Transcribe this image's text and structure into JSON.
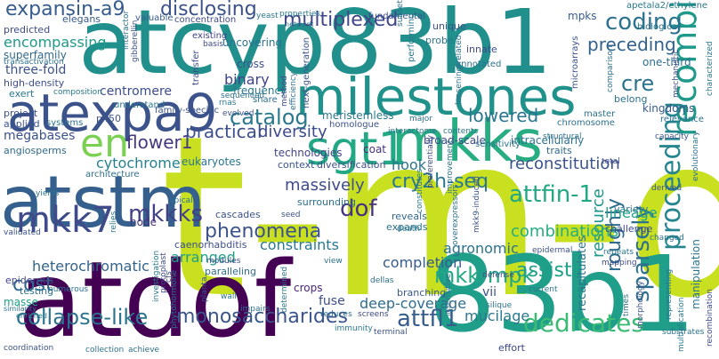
{
  "words": [
    {
      "text": "t-m-d",
      "color": "#c8e020"
    },
    {
      "text": "atcyp83b1",
      "color": "#21908d"
    },
    {
      "text": "atdof",
      "color": "#440154"
    },
    {
      "text": "83b1",
      "color": "#1f9e89"
    },
    {
      "text": "atstm",
      "color": "#35608d"
    },
    {
      "text": "atexpa9",
      "color": "#3b528b"
    },
    {
      "text": "milestones",
      "color": "#21918c"
    },
    {
      "text": "mkks",
      "color": "#27ad81"
    },
    {
      "text": "sgt1",
      "color": "#22a884"
    },
    {
      "text": "mkk7",
      "color": "#3e4a89"
    },
    {
      "text": "en",
      "color": "#7ad151"
    },
    {
      "text": "expansin-a9",
      "color": "#365c8d"
    },
    {
      "text": "disclosing",
      "color": "#3b528b"
    },
    {
      "text": "multiplexed",
      "color": "#404688"
    },
    {
      "text": "coding",
      "color": "#2c728e"
    },
    {
      "text": "preceding",
      "color": "#33638d"
    },
    {
      "text": "cre",
      "color": "#2c718e"
    },
    {
      "text": "recombinase",
      "color": "#1f9a8a"
    },
    {
      "text": "catalog",
      "color": "#2a788e"
    },
    {
      "text": "proceeding",
      "color": "#25858e"
    },
    {
      "text": "cry2h-seq",
      "color": "#2a788e"
    },
    {
      "text": "attfin-1",
      "color": "#22a884"
    },
    {
      "text": "mkkks",
      "color": "#424086"
    },
    {
      "text": "dof",
      "color": "#46327e"
    },
    {
      "text": "mkk-mpk",
      "color": "#22a884"
    },
    {
      "text": "phenomena",
      "color": "#3b528b"
    },
    {
      "text": "combinations",
      "color": "#26ad81"
    },
    {
      "text": "assist",
      "color": "#1fa187"
    },
    {
      "text": "resource",
      "color": "#1f968b"
    },
    {
      "text": "sparsely",
      "color": "#2d708e"
    },
    {
      "text": "roughly",
      "color": "#2f6c8e"
    },
    {
      "text": "dedicates",
      "color": "#3bbb75"
    },
    {
      "text": "monosaccharides",
      "color": "#3a548c"
    },
    {
      "text": "collapse-like",
      "color": "#2c738e"
    },
    {
      "text": "attfl1",
      "color": "#365d8d"
    },
    {
      "text": "cost",
      "color": "#31688e"
    },
    {
      "text": "lowered",
      "color": "#2a768e"
    },
    {
      "text": "flower1",
      "color": "#453781"
    },
    {
      "text": "practical",
      "color": "#3c4f8a"
    },
    {
      "text": "diversity",
      "color": "#3e4989"
    },
    {
      "text": "massively",
      "color": "#3e4c8a"
    },
    {
      "text": "reconstitution",
      "color": "#3b528b"
    },
    {
      "text": "deep-coverage",
      "color": "#2f6c8e"
    },
    {
      "text": "completion",
      "color": "#375a8c"
    },
    {
      "text": "constraints",
      "color": "#2a788e"
    },
    {
      "text": "arranged",
      "color": "#1f9e89"
    },
    {
      "text": "heterochromatic",
      "color": "#33638d"
    },
    {
      "text": "megabases",
      "color": "#3b518b"
    },
    {
      "text": "cytochrome",
      "color": "#26828e"
    },
    {
      "text": "agronomic",
      "color": "#2d718e"
    },
    {
      "text": "mucilage",
      "color": "#2a788e"
    },
    {
      "text": "lineage",
      "color": "#20a386"
    },
    {
      "text": "hook",
      "color": "#2c728e"
    },
    {
      "text": "binary",
      "color": "#404387"
    },
    {
      "text": "encompassing",
      "color": "#1f9a8a"
    },
    {
      "text": "three-fold",
      "color": "#3b528b"
    },
    {
      "text": "centromere",
      "color": "#3d4d8a"
    },
    {
      "text": "mpks",
      "color": "#365c8d"
    },
    {
      "text": "one-third",
      "color": "#2e6e8e"
    },
    {
      "text": "meristemless",
      "color": "#2a778e"
    },
    {
      "text": "intracellularly",
      "color": "#2d708e"
    },
    {
      "text": "broad-scale",
      "color": "#3e4a89"
    },
    {
      "text": "superfamily",
      "color": "#31688e"
    },
    {
      "text": "high-density",
      "color": "#3d4e8a"
    },
    {
      "text": "predicted",
      "color": "#3e4c8a"
    },
    {
      "text": "elegans",
      "color": "#375b8d"
    },
    {
      "text": "eukaryotes",
      "color": "#2b758e"
    },
    {
      "text": "technologies",
      "color": "#414487"
    },
    {
      "text": "context",
      "color": "#3a548c"
    },
    {
      "text": "diversification",
      "color": "#3c4f8a"
    },
    {
      "text": "surrounding",
      "color": "#2d708e"
    },
    {
      "text": "expands",
      "color": "#2d708e"
    },
    {
      "text": "reveals",
      "color": "#31688e"
    },
    {
      "text": "caenorhabditis",
      "color": "#3b528b"
    },
    {
      "text": "node",
      "color": "#46337f"
    },
    {
      "text": "cascades",
      "color": "#3a548c"
    },
    {
      "text": "recapitulates",
      "color": "#2c728e"
    },
    {
      "text": "manipulation",
      "color": "#2b748e"
    },
    {
      "text": "epidermis",
      "color": "#404588"
    },
    {
      "text": "testing",
      "color": "#2d708e"
    },
    {
      "text": "paralleling",
      "color": "#2f6c8e"
    },
    {
      "text": "vii",
      "color": "#3b528b"
    },
    {
      "text": "fuse",
      "color": "#3d4e8a"
    },
    {
      "text": "branching",
      "color": "#375a8c"
    },
    {
      "text": "crops",
      "color": "#482677"
    },
    {
      "text": "frequency",
      "color": "#2a788e"
    },
    {
      "text": "kingdoms",
      "color": "#375a8c"
    },
    {
      "text": "challenge",
      "color": "#3e4a89"
    },
    {
      "text": "variety",
      "color": "#2a768e"
    },
    {
      "text": "belong",
      "color": "#2c718e"
    },
    {
      "text": "coat",
      "color": "#46327e"
    },
    {
      "text": "effort",
      "color": "#3e4a89"
    },
    {
      "text": "masse",
      "color": "#1fa088"
    },
    {
      "text": "p450",
      "color": "#3a548c"
    },
    {
      "text": "angiosperms",
      "color": "#2f6b8e"
    },
    {
      "text": "project",
      "color": "#3b528b"
    },
    {
      "text": "applied",
      "color": "#3a548c"
    },
    {
      "text": "systems",
      "color": "#2c728e"
    },
    {
      "text": "architecture",
      "color": "#2d708e"
    },
    {
      "text": "family-specific",
      "color": "#3b528b"
    },
    {
      "text": "understand",
      "color": "#2b748e"
    },
    {
      "text": "exert",
      "color": "#2a788e"
    },
    {
      "text": "composition",
      "color": "#2a788e"
    },
    {
      "text": "transfer",
      "color": "#3e4a89"
    },
    {
      "text": "uncovering",
      "color": "#2c728e"
    },
    {
      "text": "existing",
      "color": "#414487"
    },
    {
      "text": "basis",
      "color": "#3e4a89"
    },
    {
      "text": "cross",
      "color": "#3b528b"
    },
    {
      "text": "share",
      "color": "#2d708e"
    },
    {
      "text": "concentration",
      "color": "#3e4a89"
    },
    {
      "text": "fundamental",
      "color": "#3b528b"
    },
    {
      "text": "valuable",
      "color": "#375b8d"
    },
    {
      "text": "unique",
      "color": "#3a548c"
    },
    {
      "text": "innate",
      "color": "#3e4c8a"
    },
    {
      "text": "annotated",
      "color": "#2d708e"
    },
    {
      "text": "probe",
      "color": "#2a788e"
    },
    {
      "text": "subset",
      "color": "#2d708e"
    },
    {
      "text": "performing",
      "color": "#2a788e"
    },
    {
      "text": "next-generation",
      "color": "#3b528b"
    },
    {
      "text": "homologue",
      "color": "#3a548c"
    },
    {
      "text": "interactome",
      "color": "#2c728e"
    },
    {
      "text": "contents",
      "color": "#2a768e"
    },
    {
      "text": "major",
      "color": "#2d708e"
    },
    {
      "text": "sensitivity",
      "color": "#2c728e"
    },
    {
      "text": "traits",
      "color": "#31688e"
    },
    {
      "text": "biological",
      "color": "#2c728e"
    },
    {
      "text": "apetala2/ethylene",
      "color": "#2a788e"
    },
    {
      "text": "microarrays",
      "color": "#3b528b"
    },
    {
      "text": "comparison",
      "color": "#2c728e"
    },
    {
      "text": "master",
      "color": "#2d708e"
    },
    {
      "text": "chromosome",
      "color": "#2c718e"
    },
    {
      "text": "relevance",
      "color": "#2d708e"
    },
    {
      "text": "mechanistic",
      "color": "#3e4a89"
    },
    {
      "text": "characterized",
      "color": "#2a788e"
    },
    {
      "text": "evolutionary",
      "color": "#2c728e"
    },
    {
      "text": "capacity",
      "color": "#3b528b"
    },
    {
      "text": "structural",
      "color": "#2d708e"
    },
    {
      "text": "total",
      "color": "#3e4c8a"
    },
    {
      "text": "derived",
      "color": "#3a548c"
    },
    {
      "text": "changed",
      "color": "#2c728e"
    },
    {
      "text": "repeats",
      "color": "#2a788e"
    },
    {
      "text": "mapping",
      "color": "#3e4a89"
    },
    {
      "text": "morphology",
      "color": "#3b528b"
    },
    {
      "text": "representing",
      "color": "#2c728e"
    },
    {
      "text": "multiplication",
      "color": "#2a788e"
    },
    {
      "text": "recombination",
      "color": "#3e4a89"
    },
    {
      "text": "times",
      "color": "#2d708e"
    },
    {
      "text": "substrates",
      "color": "#2c728e"
    },
    {
      "text": "epidermal",
      "color": "#3b528b"
    },
    {
      "text": "current",
      "color": "#2a788e"
    },
    {
      "text": "defense",
      "color": "#3e4a89"
    },
    {
      "text": "silique",
      "color": "#2c728e"
    },
    {
      "text": "insensitive",
      "color": "#2d708e"
    },
    {
      "text": "terminal",
      "color": "#3b528b"
    },
    {
      "text": "immunity",
      "color": "#2a788e"
    },
    {
      "text": "reduces",
      "color": "#2c718e"
    },
    {
      "text": "screens",
      "color": "#3e4a89"
    },
    {
      "text": "dellas",
      "color": "#2d708e"
    },
    {
      "text": "overexpressors",
      "color": "#2c728e"
    },
    {
      "text": "constitutes",
      "color": "#2a788e"
    },
    {
      "text": "mkk9-induced",
      "color": "#3b528b"
    },
    {
      "text": "improvement",
      "color": "#2c728e"
    },
    {
      "text": "preferentially",
      "color": "#3e4a89"
    },
    {
      "text": "death",
      "color": "#2a788e"
    },
    {
      "text": "loosening-related",
      "color": "#2c728e"
    },
    {
      "text": "seed",
      "color": "#3b528b"
    },
    {
      "text": "view",
      "color": "#2d708e"
    },
    {
      "text": "impairs",
      "color": "#2c718e"
    },
    {
      "text": "determined",
      "color": "#2a788e"
    },
    {
      "text": "planta",
      "color": "#3b528b"
    },
    {
      "text": "wall",
      "color": "#2c728e"
    },
    {
      "text": "modules",
      "color": "#3e4a89"
    },
    {
      "text": "apical",
      "color": "#2d708e"
    },
    {
      "text": "relies",
      "color": "#2a788e"
    },
    {
      "text": "yields",
      "color": "#2c728e"
    },
    {
      "text": "validated",
      "color": "#3b528b"
    },
    {
      "text": "numerous",
      "color": "#2c718e"
    },
    {
      "text": "investigation",
      "color": "#2a788e"
    },
    {
      "text": "protoplast",
      "color": "#3e4a89"
    },
    {
      "text": "phytohormone",
      "color": "#2c728e"
    },
    {
      "text": "similarity",
      "color": "#2d708e"
    },
    {
      "text": "enriched",
      "color": "#2a788e"
    },
    {
      "text": "coordination",
      "color": "#3b528b"
    },
    {
      "text": "collection",
      "color": "#2c728e"
    },
    {
      "text": "achieve",
      "color": "#2d708e"
    },
    {
      "text": "cfs",
      "color": "#3e4a89"
    },
    {
      "text": "yeast",
      "color": "#2a788e"
    },
    {
      "text": "transactivation",
      "color": "#2c728e"
    },
    {
      "text": "gibberellin",
      "color": "#3b528b"
    },
    {
      "text": "interactor",
      "color": "#2c728e"
    },
    {
      "text": "properties",
      "color": "#2a788e"
    },
    {
      "text": "network",
      "color": "#2c718e"
    },
    {
      "text": "method",
      "color": "#3e4a89"
    },
    {
      "text": "efficiency",
      "color": "#2d708e"
    },
    {
      "text": "rnas",
      "color": "#2a788e"
    },
    {
      "text": "sequenced",
      "color": "#2c728e"
    },
    {
      "text": "evolved",
      "color": "#3b528b"
    }
  ]
}
